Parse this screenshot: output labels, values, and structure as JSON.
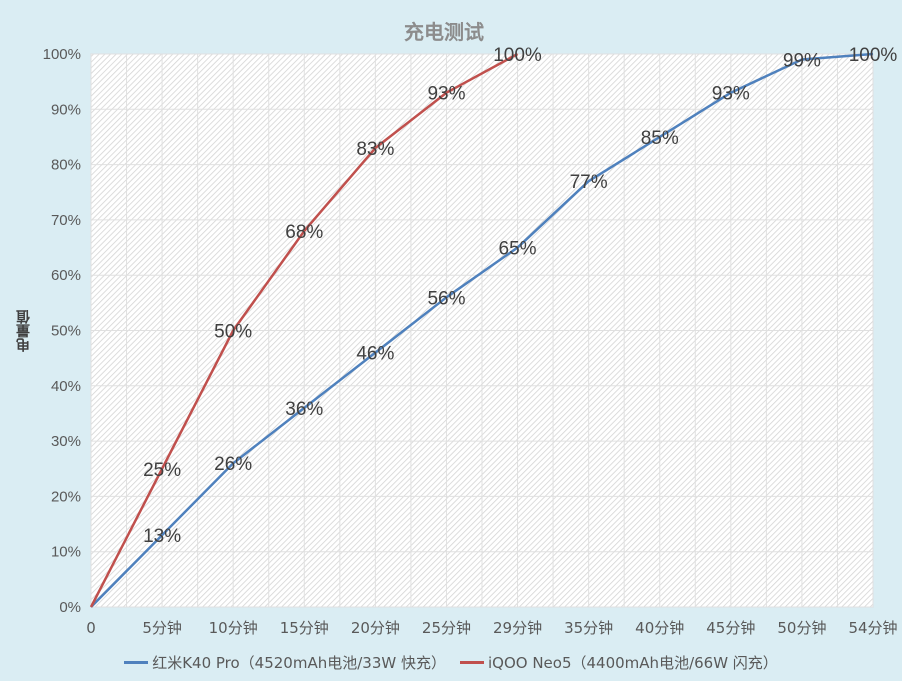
{
  "chart_data": {
    "type": "line",
    "title": "充电测试",
    "xlabel": "",
    "ylabel": "电量值",
    "categories": [
      "0",
      "5分钟",
      "10分钟",
      "15分钟",
      "20分钟",
      "25分钟",
      "29分钟",
      "35分钟",
      "40分钟",
      "45分钟",
      "50分钟",
      "54分钟"
    ],
    "yticks": [
      "0%",
      "10%",
      "20%",
      "30%",
      "40%",
      "50%",
      "60%",
      "70%",
      "80%",
      "90%",
      "100%"
    ],
    "ylim": [
      0,
      100
    ],
    "grid": true,
    "legend_position": "bottom",
    "series": [
      {
        "name": "红米K40 Pro（4520mAh电池/33W 快充）",
        "color": "#4f81bd",
        "values": [
          0,
          13,
          26,
          36,
          46,
          56,
          65,
          77,
          85,
          93,
          99,
          100
        ],
        "labels": [
          "",
          "13%",
          "26%",
          "36%",
          "46%",
          "56%",
          "65%",
          "77%",
          "85%",
          "93%",
          "99%",
          "100%"
        ]
      },
      {
        "name": "iQOO Neo5（4400mAh电池/66W 闪充）",
        "color": "#c0504d",
        "values": [
          0,
          25,
          50,
          68,
          83,
          93,
          100
        ],
        "labels": [
          "",
          "25%",
          "50%",
          "68%",
          "83%",
          "93%",
          "100%"
        ]
      }
    ]
  }
}
